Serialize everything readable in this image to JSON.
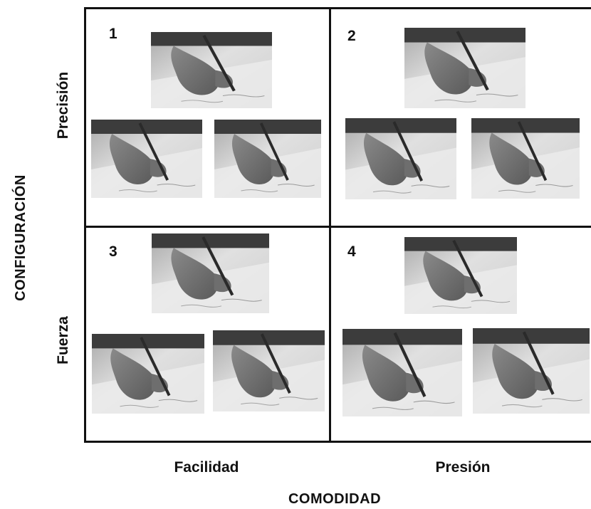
{
  "y_axis": {
    "title": "CONFIGURACIÓN",
    "top_label": "Precisión",
    "bottom_label": "Fuerza"
  },
  "x_axis": {
    "title": "COMODIDAD",
    "left_label": "Facilidad",
    "right_label": "Presión"
  },
  "quadrants": [
    {
      "number": "1"
    },
    {
      "number": "2"
    },
    {
      "number": "3"
    },
    {
      "number": "4"
    }
  ]
}
